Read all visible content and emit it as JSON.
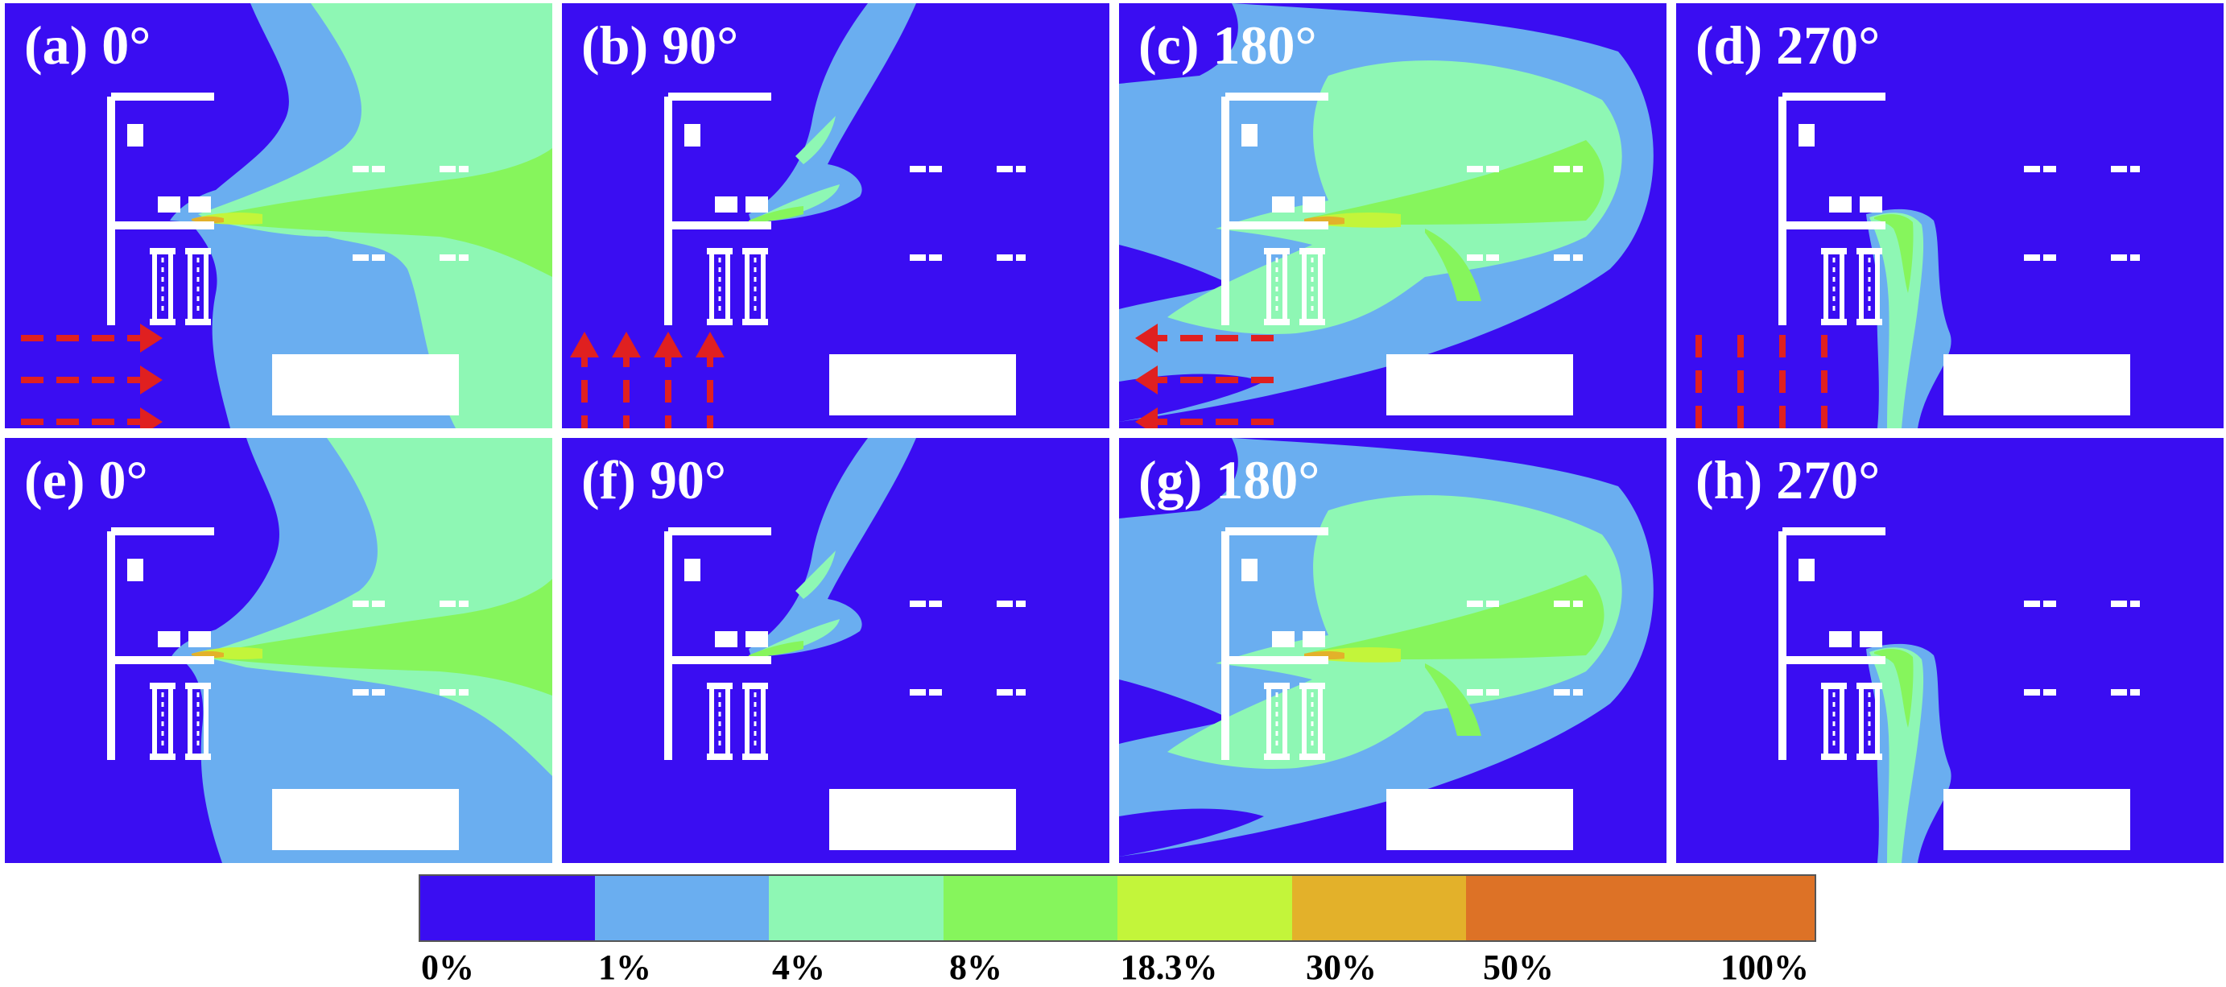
{
  "panels": [
    {
      "id": "a",
      "label": "(a) 0°",
      "wind_deg": 0,
      "wind_arrows": true
    },
    {
      "id": "b",
      "label": "(b) 90°",
      "wind_deg": 90,
      "wind_arrows": true
    },
    {
      "id": "c",
      "label": "(c) 180°",
      "wind_deg": 180,
      "wind_arrows": true
    },
    {
      "id": "d",
      "label": "(d) 270°",
      "wind_deg": 270,
      "wind_arrows": true
    },
    {
      "id": "e",
      "label": "(e) 0°",
      "wind_deg": 0,
      "wind_arrows": false
    },
    {
      "id": "f",
      "label": "(f) 90°",
      "wind_deg": 90,
      "wind_arrows": false
    },
    {
      "id": "g",
      "label": "(g) 180°",
      "wind_deg": 180,
      "wind_arrows": false
    },
    {
      "id": "h",
      "label": "(h) 270°",
      "wind_deg": 270,
      "wind_arrows": false
    }
  ],
  "colors": {
    "c0": "#3a0df2",
    "c1": "#6aaef0",
    "c4": "#8ef7b4",
    "c8": "#86f55c",
    "c18": "#c3f53a",
    "c30": "#e3b12a",
    "c50": "#dd7226",
    "wind_arrow": "#e02020",
    "building": "#ffffff"
  },
  "legend": {
    "labels": [
      "0%",
      "1%",
      "4%",
      "8%",
      "18.3%",
      "30%",
      "50%",
      "100%"
    ],
    "colors": [
      "#3a0df2",
      "#6aaef0",
      "#8ef7b4",
      "#86f55c",
      "#c3f53a",
      "#e3b12a",
      "#dd7226"
    ]
  }
}
